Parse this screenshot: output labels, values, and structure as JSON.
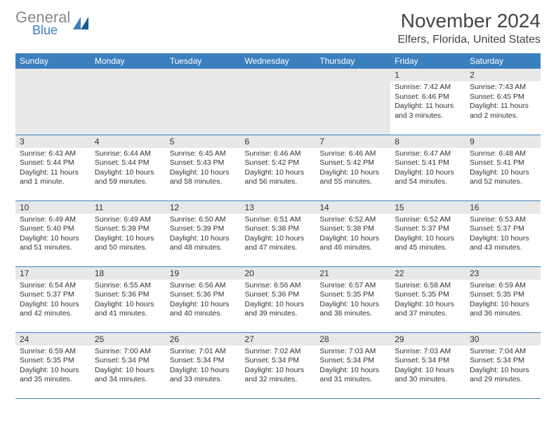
{
  "brand": {
    "general": "General",
    "blue": "Blue"
  },
  "header": {
    "month_title": "November 2024",
    "location": "Elfers, Florida, United States"
  },
  "colors": {
    "accent": "#3b7fbf",
    "header_bg": "#3b7fbf",
    "daynum_bg": "#e8e8e8",
    "text": "#333333",
    "background": "#ffffff"
  },
  "calendar": {
    "dow": [
      "Sunday",
      "Monday",
      "Tuesday",
      "Wednesday",
      "Thursday",
      "Friday",
      "Saturday"
    ],
    "weeks": [
      [
        null,
        null,
        null,
        null,
        null,
        {
          "n": "1",
          "sunrise": "Sunrise: 7:42 AM",
          "sunset": "Sunset: 6:46 PM",
          "daylight": "Daylight: 11 hours and 3 minutes."
        },
        {
          "n": "2",
          "sunrise": "Sunrise: 7:43 AM",
          "sunset": "Sunset: 6:45 PM",
          "daylight": "Daylight: 11 hours and 2 minutes."
        }
      ],
      [
        {
          "n": "3",
          "sunrise": "Sunrise: 6:43 AM",
          "sunset": "Sunset: 5:44 PM",
          "daylight": "Daylight: 11 hours and 1 minute."
        },
        {
          "n": "4",
          "sunrise": "Sunrise: 6:44 AM",
          "sunset": "Sunset: 5:44 PM",
          "daylight": "Daylight: 10 hours and 59 minutes."
        },
        {
          "n": "5",
          "sunrise": "Sunrise: 6:45 AM",
          "sunset": "Sunset: 5:43 PM",
          "daylight": "Daylight: 10 hours and 58 minutes."
        },
        {
          "n": "6",
          "sunrise": "Sunrise: 6:46 AM",
          "sunset": "Sunset: 5:42 PM",
          "daylight": "Daylight: 10 hours and 56 minutes."
        },
        {
          "n": "7",
          "sunrise": "Sunrise: 6:46 AM",
          "sunset": "Sunset: 5:42 PM",
          "daylight": "Daylight: 10 hours and 55 minutes."
        },
        {
          "n": "8",
          "sunrise": "Sunrise: 6:47 AM",
          "sunset": "Sunset: 5:41 PM",
          "daylight": "Daylight: 10 hours and 54 minutes."
        },
        {
          "n": "9",
          "sunrise": "Sunrise: 6:48 AM",
          "sunset": "Sunset: 5:41 PM",
          "daylight": "Daylight: 10 hours and 52 minutes."
        }
      ],
      [
        {
          "n": "10",
          "sunrise": "Sunrise: 6:49 AM",
          "sunset": "Sunset: 5:40 PM",
          "daylight": "Daylight: 10 hours and 51 minutes."
        },
        {
          "n": "11",
          "sunrise": "Sunrise: 6:49 AM",
          "sunset": "Sunset: 5:39 PM",
          "daylight": "Daylight: 10 hours and 50 minutes."
        },
        {
          "n": "12",
          "sunrise": "Sunrise: 6:50 AM",
          "sunset": "Sunset: 5:39 PM",
          "daylight": "Daylight: 10 hours and 48 minutes."
        },
        {
          "n": "13",
          "sunrise": "Sunrise: 6:51 AM",
          "sunset": "Sunset: 5:38 PM",
          "daylight": "Daylight: 10 hours and 47 minutes."
        },
        {
          "n": "14",
          "sunrise": "Sunrise: 6:52 AM",
          "sunset": "Sunset: 5:38 PM",
          "daylight": "Daylight: 10 hours and 46 minutes."
        },
        {
          "n": "15",
          "sunrise": "Sunrise: 6:52 AM",
          "sunset": "Sunset: 5:37 PM",
          "daylight": "Daylight: 10 hours and 45 minutes."
        },
        {
          "n": "16",
          "sunrise": "Sunrise: 6:53 AM",
          "sunset": "Sunset: 5:37 PM",
          "daylight": "Daylight: 10 hours and 43 minutes."
        }
      ],
      [
        {
          "n": "17",
          "sunrise": "Sunrise: 6:54 AM",
          "sunset": "Sunset: 5:37 PM",
          "daylight": "Daylight: 10 hours and 42 minutes."
        },
        {
          "n": "18",
          "sunrise": "Sunrise: 6:55 AM",
          "sunset": "Sunset: 5:36 PM",
          "daylight": "Daylight: 10 hours and 41 minutes."
        },
        {
          "n": "19",
          "sunrise": "Sunrise: 6:56 AM",
          "sunset": "Sunset: 5:36 PM",
          "daylight": "Daylight: 10 hours and 40 minutes."
        },
        {
          "n": "20",
          "sunrise": "Sunrise: 6:56 AM",
          "sunset": "Sunset: 5:36 PM",
          "daylight": "Daylight: 10 hours and 39 minutes."
        },
        {
          "n": "21",
          "sunrise": "Sunrise: 6:57 AM",
          "sunset": "Sunset: 5:35 PM",
          "daylight": "Daylight: 10 hours and 38 minutes."
        },
        {
          "n": "22",
          "sunrise": "Sunrise: 6:58 AM",
          "sunset": "Sunset: 5:35 PM",
          "daylight": "Daylight: 10 hours and 37 minutes."
        },
        {
          "n": "23",
          "sunrise": "Sunrise: 6:59 AM",
          "sunset": "Sunset: 5:35 PM",
          "daylight": "Daylight: 10 hours and 36 minutes."
        }
      ],
      [
        {
          "n": "24",
          "sunrise": "Sunrise: 6:59 AM",
          "sunset": "Sunset: 5:35 PM",
          "daylight": "Daylight: 10 hours and 35 minutes."
        },
        {
          "n": "25",
          "sunrise": "Sunrise: 7:00 AM",
          "sunset": "Sunset: 5:34 PM",
          "daylight": "Daylight: 10 hours and 34 minutes."
        },
        {
          "n": "26",
          "sunrise": "Sunrise: 7:01 AM",
          "sunset": "Sunset: 5:34 PM",
          "daylight": "Daylight: 10 hours and 33 minutes."
        },
        {
          "n": "27",
          "sunrise": "Sunrise: 7:02 AM",
          "sunset": "Sunset: 5:34 PM",
          "daylight": "Daylight: 10 hours and 32 minutes."
        },
        {
          "n": "28",
          "sunrise": "Sunrise: 7:03 AM",
          "sunset": "Sunset: 5:34 PM",
          "daylight": "Daylight: 10 hours and 31 minutes."
        },
        {
          "n": "29",
          "sunrise": "Sunrise: 7:03 AM",
          "sunset": "Sunset: 5:34 PM",
          "daylight": "Daylight: 10 hours and 30 minutes."
        },
        {
          "n": "30",
          "sunrise": "Sunrise: 7:04 AM",
          "sunset": "Sunset: 5:34 PM",
          "daylight": "Daylight: 10 hours and 29 minutes."
        }
      ]
    ]
  }
}
